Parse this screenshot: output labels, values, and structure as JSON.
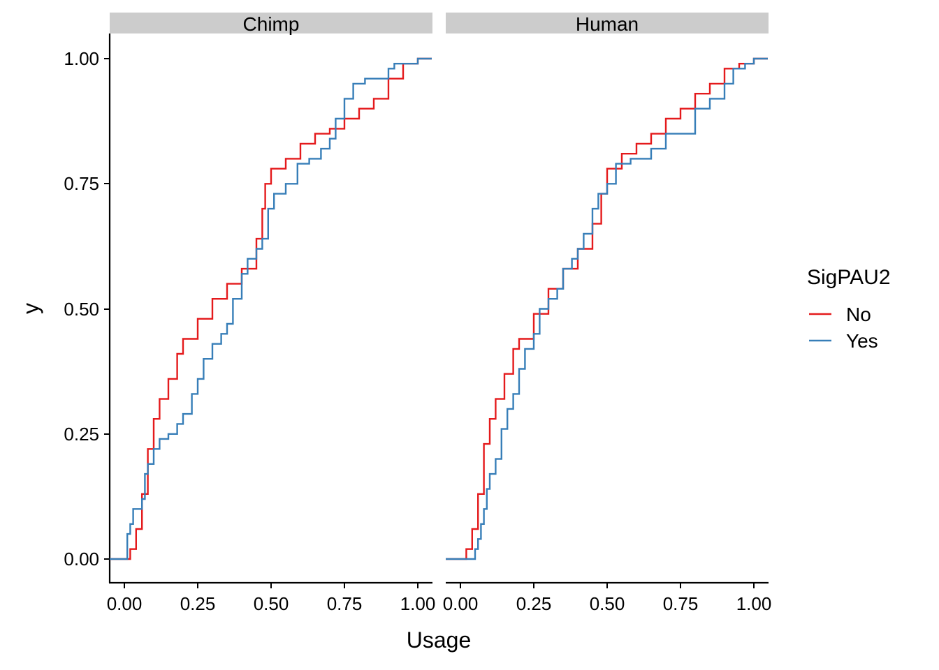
{
  "chart_data": {
    "type": "line",
    "subtype": "empirical cumulative distribution (step)",
    "xlabel": "Usage",
    "ylabel": "y",
    "xlim": [
      0,
      1
    ],
    "ylim": [
      0,
      1
    ],
    "x_ticks": [
      "0.00",
      "0.25",
      "0.50",
      "0.75",
      "1.00"
    ],
    "y_ticks": [
      "0.00",
      "0.25",
      "0.50",
      "0.75",
      "1.00"
    ],
    "grid": false,
    "legend": {
      "title": "SigPAU2",
      "position": "right",
      "entries": [
        {
          "name": "No",
          "color": "#e41a1c"
        },
        {
          "name": "Yes",
          "color": "#377eb8"
        }
      ]
    },
    "panels": [
      {
        "label": "Chimp",
        "series": [
          {
            "name": "No",
            "color": "#e41a1c",
            "x": [
              0.0,
              0.02,
              0.04,
              0.06,
              0.08,
              0.1,
              0.12,
              0.15,
              0.18,
              0.2,
              0.25,
              0.3,
              0.35,
              0.4,
              0.45,
              0.47,
              0.48,
              0.5,
              0.55,
              0.6,
              0.65,
              0.7,
              0.75,
              0.8,
              0.85,
              0.9,
              0.95,
              1.0
            ],
            "y": [
              0.0,
              0.02,
              0.06,
              0.13,
              0.22,
              0.28,
              0.32,
              0.36,
              0.41,
              0.44,
              0.48,
              0.52,
              0.55,
              0.58,
              0.64,
              0.7,
              0.75,
              0.78,
              0.8,
              0.83,
              0.85,
              0.86,
              0.88,
              0.9,
              0.92,
              0.96,
              0.99,
              1.0
            ]
          },
          {
            "name": "Yes",
            "color": "#377eb8",
            "x": [
              0.0,
              0.01,
              0.02,
              0.03,
              0.04,
              0.06,
              0.07,
              0.08,
              0.1,
              0.12,
              0.15,
              0.18,
              0.2,
              0.23,
              0.25,
              0.27,
              0.3,
              0.33,
              0.35,
              0.37,
              0.4,
              0.42,
              0.45,
              0.47,
              0.49,
              0.51,
              0.55,
              0.59,
              0.63,
              0.67,
              0.7,
              0.72,
              0.75,
              0.78,
              0.82,
              0.87,
              0.9,
              0.92,
              1.0
            ],
            "y": [
              0.0,
              0.05,
              0.07,
              0.1,
              0.1,
              0.12,
              0.17,
              0.19,
              0.22,
              0.24,
              0.25,
              0.27,
              0.29,
              0.33,
              0.36,
              0.4,
              0.43,
              0.45,
              0.47,
              0.52,
              0.57,
              0.6,
              0.62,
              0.64,
              0.7,
              0.73,
              0.75,
              0.79,
              0.8,
              0.82,
              0.84,
              0.88,
              0.92,
              0.95,
              0.96,
              0.96,
              0.98,
              0.99,
              1.0
            ]
          }
        ]
      },
      {
        "label": "Human",
        "series": [
          {
            "name": "No",
            "color": "#e41a1c",
            "x": [
              0.0,
              0.02,
              0.04,
              0.06,
              0.08,
              0.1,
              0.12,
              0.15,
              0.18,
              0.2,
              0.25,
              0.3,
              0.35,
              0.4,
              0.45,
              0.48,
              0.5,
              0.55,
              0.6,
              0.65,
              0.7,
              0.75,
              0.8,
              0.85,
              0.9,
              0.95,
              1.0
            ],
            "y": [
              0.0,
              0.02,
              0.06,
              0.13,
              0.23,
              0.28,
              0.32,
              0.37,
              0.42,
              0.44,
              0.49,
              0.54,
              0.58,
              0.62,
              0.67,
              0.73,
              0.78,
              0.81,
              0.83,
              0.85,
              0.88,
              0.9,
              0.93,
              0.95,
              0.98,
              0.99,
              1.0
            ]
          },
          {
            "name": "Yes",
            "color": "#377eb8",
            "x": [
              0.0,
              0.05,
              0.06,
              0.07,
              0.08,
              0.09,
              0.1,
              0.12,
              0.14,
              0.16,
              0.18,
              0.2,
              0.22,
              0.25,
              0.27,
              0.3,
              0.33,
              0.35,
              0.38,
              0.4,
              0.42,
              0.45,
              0.47,
              0.5,
              0.53,
              0.58,
              0.65,
              0.7,
              0.8,
              0.85,
              0.9,
              0.93,
              0.97,
              1.0
            ],
            "y": [
              0.0,
              0.02,
              0.04,
              0.07,
              0.1,
              0.14,
              0.17,
              0.2,
              0.26,
              0.3,
              0.33,
              0.38,
              0.42,
              0.45,
              0.5,
              0.52,
              0.54,
              0.58,
              0.6,
              0.62,
              0.65,
              0.7,
              0.73,
              0.75,
              0.79,
              0.8,
              0.82,
              0.85,
              0.9,
              0.92,
              0.95,
              0.98,
              0.99,
              1.0
            ]
          }
        ]
      }
    ]
  }
}
